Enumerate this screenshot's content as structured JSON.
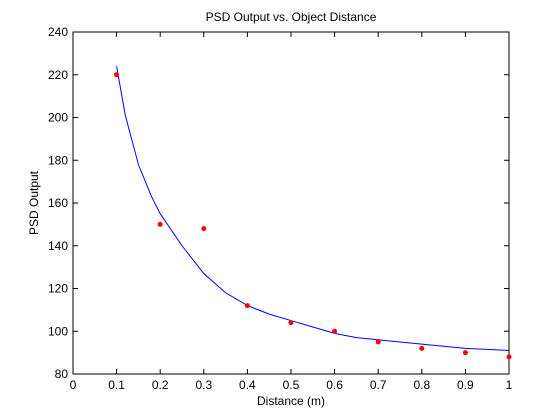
{
  "chart_data": {
    "type": "scatter",
    "title": "PSD Output vs. Object Distance",
    "xlabel": "Distance (m)",
    "ylabel": "PSD Output",
    "xlim": [
      0,
      1
    ],
    "ylim": [
      80,
      240
    ],
    "grid": false,
    "x_ticks": [
      0,
      0.1,
      0.2,
      0.3,
      0.4,
      0.5,
      0.6,
      0.7,
      0.8,
      0.9,
      1
    ],
    "x_tick_labels": [
      "0",
      "0.1",
      "0.2",
      "0.3",
      "0.4",
      "0.5",
      "0.6",
      "0.7",
      "0.8",
      "0.9",
      "1"
    ],
    "y_ticks": [
      80,
      100,
      120,
      140,
      160,
      180,
      200,
      220,
      240
    ],
    "y_tick_labels": [
      "80",
      "100",
      "120",
      "140",
      "160",
      "180",
      "200",
      "220",
      "240"
    ],
    "series": [
      {
        "kind": "scatter",
        "color": "#ff0000",
        "x": [
          0.1,
          0.2,
          0.3,
          0.4,
          0.5,
          0.6,
          0.7,
          0.8,
          0.9,
          1.0
        ],
        "y": [
          220,
          150,
          148,
          112,
          104,
          100,
          95,
          92,
          90,
          88
        ]
      },
      {
        "kind": "line",
        "color": "#0000ff",
        "x": [
          0.1,
          0.12,
          0.15,
          0.18,
          0.2,
          0.25,
          0.3,
          0.35,
          0.4,
          0.45,
          0.5,
          0.55,
          0.6,
          0.65,
          0.7,
          0.75,
          0.8,
          0.85,
          0.9,
          0.95,
          1.0
        ],
        "y": [
          224,
          201,
          178,
          163,
          155,
          140,
          127,
          118,
          112,
          108,
          105,
          102,
          99,
          97,
          96,
          95,
          94,
          93,
          92,
          91.5,
          91
        ]
      }
    ]
  }
}
